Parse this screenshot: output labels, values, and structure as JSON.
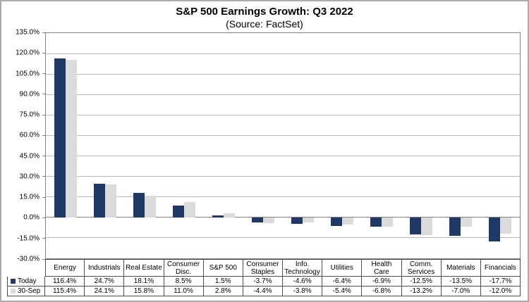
{
  "title": "S&P 500 Earnings Growth: Q3 2022",
  "subtitle": "(Source: FactSet)",
  "colors": {
    "series_today": "#1f3864",
    "series_30sep": "#dbdbdb",
    "gridline": "#b8b8b8",
    "zero_line": "#808080",
    "plot_border": "#808080",
    "table_border": "#4d4d4d",
    "frame_border": "#ababab"
  },
  "chart_data": {
    "type": "bar",
    "title": "S&P 500 Earnings Growth: Q3 2022",
    "subtitle": "(Source: FactSet)",
    "categories": [
      "Energy",
      "Industrials",
      "Real Estate",
      "Consumer Disc.",
      "S&P 500",
      "Consumer Staples",
      "Info. Technology",
      "Utilities",
      "Health Care",
      "Comm. Services",
      "Materials",
      "Financials"
    ],
    "series": [
      {
        "name": "Today",
        "color": "#1f3864",
        "values": [
          116.4,
          24.7,
          18.1,
          8.5,
          1.5,
          -3.7,
          -4.6,
          -6.4,
          -6.9,
          -12.5,
          -13.5,
          -17.7
        ]
      },
      {
        "name": "30-Sep",
        "color": "#dbdbdb",
        "values": [
          115.4,
          24.1,
          15.8,
          11.0,
          2.8,
          -4.4,
          -3.8,
          -5.4,
          -6.8,
          -13.2,
          -7.0,
          -12.0
        ]
      }
    ],
    "xlabel": "",
    "ylabel": "",
    "ylim": [
      -30,
      135
    ],
    "ytick_step": 15,
    "ytick_labels": [
      "135.0%",
      "120.0%",
      "105.0%",
      "90.0%",
      "75.0%",
      "60.0%",
      "45.0%",
      "30.0%",
      "15.0%",
      "0.0%",
      "-15.0%",
      "-30.0%"
    ],
    "grid": true,
    "legend_position": "table-left",
    "value_format": "percent_1dp"
  },
  "table": {
    "headers": [
      "Energy",
      "Industrials",
      "Real Estate",
      "Consumer\nDisc.",
      "S&P 500",
      "Consumer\nStaples",
      "Info.\nTechnology",
      "Utilities",
      "Health\nCare",
      "Comm.\nServices",
      "Materials",
      "Financials"
    ],
    "rows": [
      {
        "label": "Today",
        "swatch_color": "#1f3864",
        "values": [
          "116.4%",
          "24.7%",
          "18.1%",
          "8.5%",
          "1.5%",
          "-3.7%",
          "-4.6%",
          "-6.4%",
          "-6.9%",
          "-12.5%",
          "-13.5%",
          "-17.7%"
        ]
      },
      {
        "label": "30-Sep",
        "swatch_color": "#dbdbdb",
        "values": [
          "115.4%",
          "24.1%",
          "15.8%",
          "11.0%",
          "2.8%",
          "-4.4%",
          "-3.8%",
          "-5.4%",
          "-6.8%",
          "-13.2%",
          "-7.0%",
          "-12.0%"
        ]
      }
    ]
  }
}
